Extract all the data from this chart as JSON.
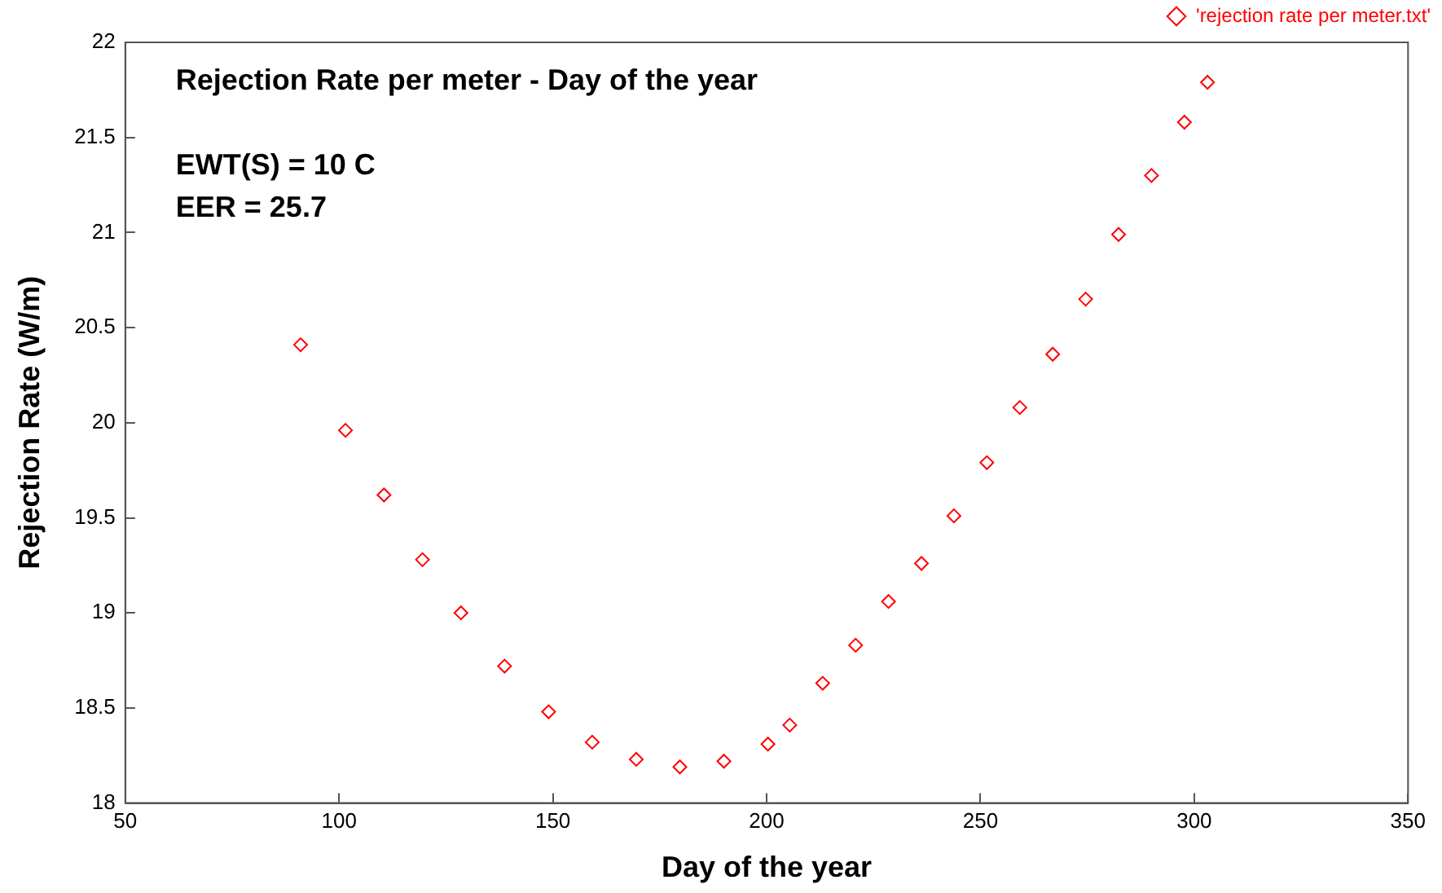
{
  "chart_data": {
    "type": "scatter",
    "title": "Rejection Rate per meter - Day of the year",
    "xlabel": "Day of the year",
    "ylabel": "Rejection Rate (W/m)",
    "annotations": [
      "EWT(S) = 10 C",
      "EER = 25.7"
    ],
    "x": [
      91,
      101.5,
      110.5,
      119.5,
      128.5,
      138.7,
      149,
      159.2,
      169.5,
      179.7,
      190,
      200.3,
      205.4,
      213.1,
      220.8,
      228.5,
      236.2,
      243.8,
      251.5,
      259.2,
      266.9,
      274.6,
      282.3,
      290,
      297.7,
      303.1
    ],
    "series": [
      {
        "name": "'rejection rate per meter.txt'",
        "color": "#ff0000",
        "values": [
          20.41,
          19.96,
          19.62,
          19.28,
          19.0,
          18.72,
          18.48,
          18.32,
          18.23,
          18.19,
          18.22,
          18.31,
          18.41,
          18.63,
          18.83,
          19.06,
          19.26,
          19.51,
          19.79,
          20.08,
          20.36,
          20.65,
          20.99,
          21.3,
          21.58,
          21.79
        ]
      }
    ],
    "xlim": [
      50,
      350
    ],
    "xticks": [
      50,
      100,
      150,
      200,
      250,
      300,
      350
    ],
    "ylim": [
      18,
      22
    ],
    "yticks": [
      18,
      18.5,
      19,
      19.5,
      20,
      20.5,
      21,
      21.5,
      22
    ],
    "marker": "diamond",
    "legend": "top right",
    "grid": false
  }
}
